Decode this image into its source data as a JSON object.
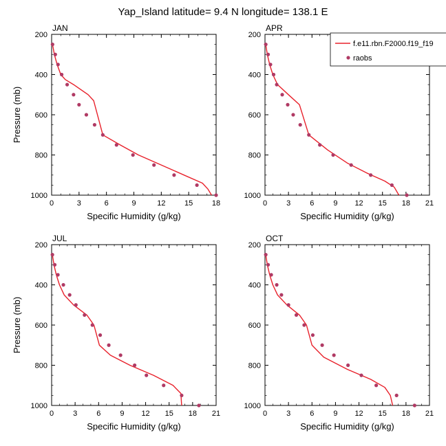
{
  "title": "Yap_Island  latitude= 9.4 N longitude= 138.1 E",
  "colors": {
    "model": "#e8202a",
    "obs": "#b03a64"
  },
  "legend": {
    "placement": "top-right",
    "model_label": "f.e11.rbn.F2000.f19_f19",
    "obs_label": "raobs"
  },
  "chart_data": [
    {
      "type": "line",
      "title": "JAN",
      "xlabel": "Specific Humidity (g/kg)",
      "ylabel": "Pressure (mb)",
      "xlim": [
        0,
        18
      ],
      "xticks": [
        0,
        3,
        6,
        9,
        12,
        15,
        18
      ],
      "ylim": [
        1000,
        200
      ],
      "yticks": [
        200,
        400,
        600,
        800,
        1000
      ],
      "series": [
        {
          "name": "f.e11.rbn.F2000.f19_f19",
          "kind": "line",
          "x": [
            0.1,
            0.3,
            0.6,
            1.0,
            1.5,
            2.4,
            4.0,
            4.6,
            5.6,
            7.5,
            9.5,
            12.0,
            14.5,
            16.5,
            17.1,
            17.5
          ],
          "y": [
            250,
            300,
            350,
            400,
            425,
            450,
            500,
            530,
            700,
            750,
            800,
            850,
            900,
            940,
            970,
            1000
          ]
        },
        {
          "name": "raobs",
          "kind": "scatter",
          "x": [
            0.1,
            0.4,
            0.7,
            1.1,
            1.7,
            2.4,
            3.0,
            3.8,
            4.7,
            5.6,
            7.1,
            8.9,
            11.2,
            13.4,
            15.9,
            18.0
          ],
          "y": [
            250,
            300,
            350,
            400,
            450,
            500,
            550,
            600,
            650,
            700,
            750,
            800,
            850,
            900,
            950,
            1000
          ]
        }
      ]
    },
    {
      "type": "line",
      "title": "APR",
      "xlabel": "Specific Humidity (g/kg)",
      "ylabel": "",
      "xlim": [
        0,
        21
      ],
      "xticks": [
        0,
        3,
        6,
        9,
        12,
        15,
        18,
        21
      ],
      "ylim": [
        1000,
        200
      ],
      "yticks": [
        200,
        400,
        600,
        800,
        1000
      ],
      "series": [
        {
          "name": "f.e11.rbn.F2000.f19_f19",
          "kind": "line",
          "x": [
            0.1,
            0.3,
            0.6,
            1.0,
            1.6,
            3.0,
            4.4,
            5.6,
            8.0,
            10.5,
            13.0,
            15.3,
            16.5,
            17.1
          ],
          "y": [
            250,
            300,
            350,
            400,
            450,
            500,
            550,
            700,
            775,
            840,
            890,
            930,
            960,
            1000
          ]
        },
        {
          "name": "raobs",
          "kind": "scatter",
          "x": [
            0.1,
            0.4,
            0.7,
            1.1,
            1.5,
            2.2,
            2.9,
            3.6,
            4.5,
            5.6,
            7.0,
            8.7,
            11.0,
            13.5,
            16.2,
            18.1
          ],
          "y": [
            250,
            300,
            350,
            400,
            450,
            500,
            550,
            600,
            650,
            700,
            750,
            800,
            850,
            900,
            950,
            1000
          ]
        }
      ]
    },
    {
      "type": "line",
      "title": "JUL",
      "xlabel": "Specific Humidity (g/kg)",
      "ylabel": "Pressure (mb)",
      "xlim": [
        0,
        21
      ],
      "xticks": [
        0,
        3,
        6,
        9,
        12,
        15,
        18,
        21
      ],
      "ylim": [
        1000,
        200
      ],
      "yticks": [
        200,
        400,
        600,
        800,
        1000
      ],
      "series": [
        {
          "name": "f.e11.rbn.F2000.f19_f19",
          "kind": "line",
          "x": [
            0.1,
            0.3,
            0.6,
            1.0,
            1.6,
            2.8,
            4.5,
            5.4,
            6.1,
            7.5,
            10.0,
            13.0,
            15.5,
            16.5,
            16.6
          ],
          "y": [
            250,
            300,
            350,
            400,
            450,
            500,
            550,
            600,
            700,
            750,
            800,
            850,
            900,
            940,
            1000
          ]
        },
        {
          "name": "raobs",
          "kind": "scatter",
          "x": [
            0.1,
            0.4,
            0.8,
            1.5,
            2.3,
            3.1,
            4.2,
            5.2,
            6.2,
            7.3,
            8.8,
            10.6,
            12.1,
            14.3,
            16.6,
            18.8
          ],
          "y": [
            250,
            300,
            350,
            400,
            450,
            500,
            550,
            600,
            650,
            700,
            750,
            800,
            850,
            900,
            950,
            1000
          ]
        }
      ]
    },
    {
      "type": "line",
      "title": "OCT",
      "xlabel": "Specific Humidity (g/kg)",
      "ylabel": "",
      "xlim": [
        0,
        21
      ],
      "xticks": [
        0,
        3,
        6,
        9,
        12,
        15,
        18,
        21
      ],
      "ylim": [
        1000,
        200
      ],
      "yticks": [
        200,
        400,
        600,
        800,
        1000
      ],
      "series": [
        {
          "name": "f.e11.rbn.F2000.f19_f19",
          "kind": "line",
          "x": [
            0.1,
            0.3,
            0.6,
            1.0,
            1.6,
            2.8,
            4.4,
            5.3,
            6.0,
            7.5,
            10.5,
            13.5,
            15.3,
            16.0,
            16.3
          ],
          "y": [
            250,
            300,
            350,
            400,
            450,
            500,
            550,
            600,
            700,
            760,
            820,
            870,
            910,
            950,
            1000
          ]
        },
        {
          "name": "raobs",
          "kind": "scatter",
          "x": [
            0.1,
            0.4,
            0.8,
            1.5,
            2.1,
            3.0,
            4.0,
            5.0,
            6.1,
            7.3,
            8.8,
            10.6,
            12.3,
            14.2,
            16.8,
            19.1
          ],
          "y": [
            250,
            300,
            350,
            400,
            450,
            500,
            550,
            600,
            650,
            700,
            750,
            800,
            850,
            900,
            950,
            1000
          ]
        }
      ]
    }
  ]
}
